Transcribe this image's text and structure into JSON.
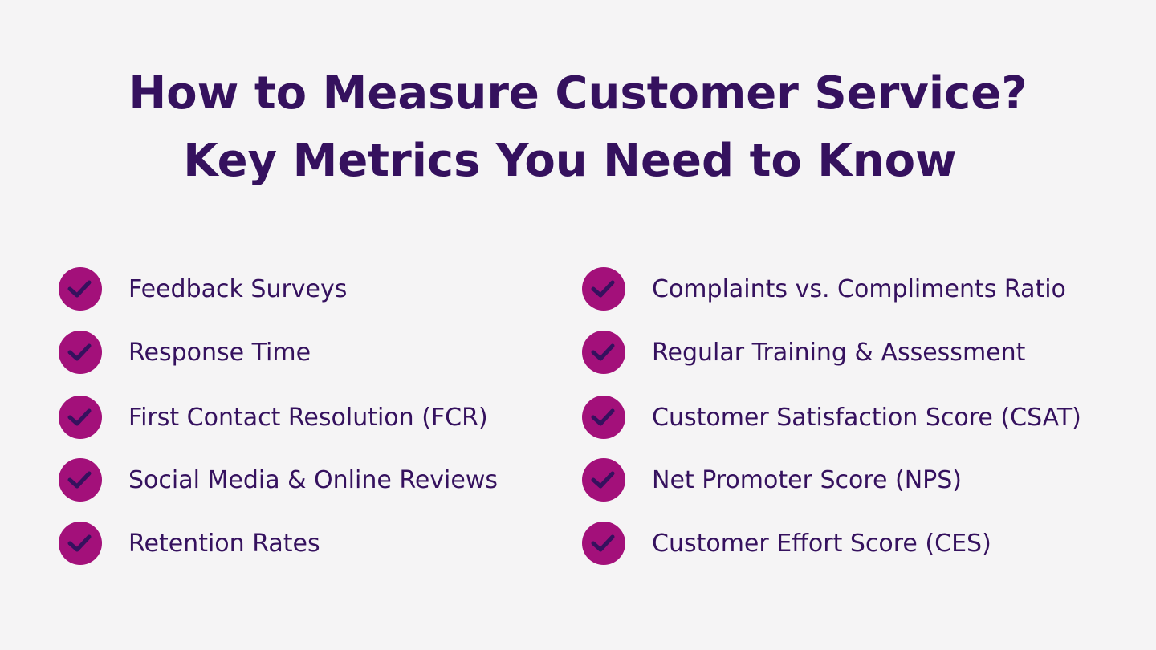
{
  "header": {
    "title": [
      "How to Measure Customer Service?",
      "Key Metrics You Need to Know"
    ]
  },
  "columns": [
    [
      "Feedback Surveys",
      "Response Time",
      "First Contact Resolution (FCR)",
      "Social Media & Online Reviews",
      "Retention Rates"
    ],
    [
      "Complaints vs. Compliments Ratio",
      "Regular Training & Assessment",
      "Customer Satisfaction Score (CSAT)",
      "Net Promoter Score (NPS)",
      "Customer Effort Score (CES)"
    ]
  ]
}
